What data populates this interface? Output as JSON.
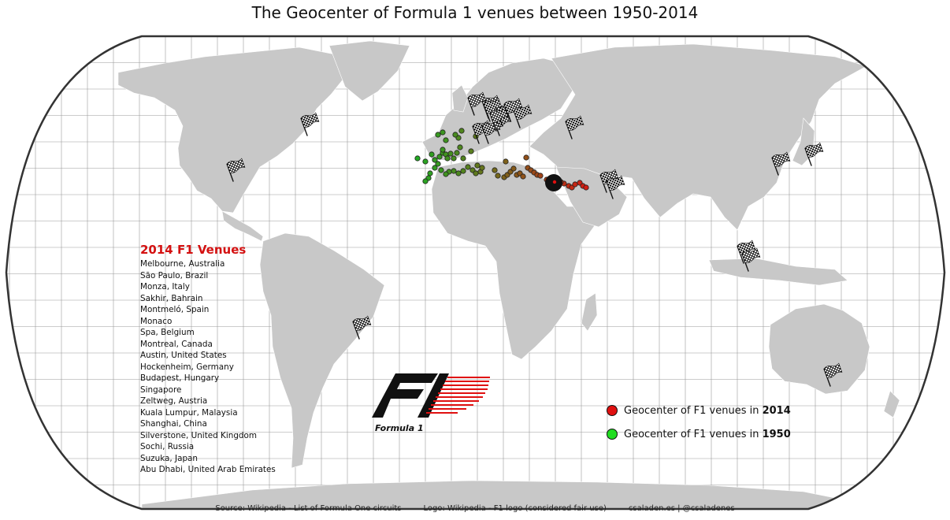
{
  "title": "The Geocenter of Formula 1 venues between 1950-2014",
  "venues_heading": "2014 F1 Venues",
  "venues": [
    "Melbourne, Australia",
    "São Paulo, Brazil",
    "Monza, Italy",
    "Sakhir, Bahrain",
    "Montmeló, Spain",
    "Monaco",
    "Spa, Belgium",
    "Montreal, Canada",
    "Austin, United States",
    "Hockenheim, Germany",
    "Budapest, Hungary",
    "Singapore",
    "Zeltweg, Austria",
    "Kuala Lumpur, Malaysia",
    "Shanghai, China",
    "Silverstone, United Kingdom",
    "Sochi, Russia",
    "Suzuka, Japan",
    "Abu Dhabi, United Arab Emirates"
  ],
  "legend": [
    {
      "prefix": "Geocenter of F1 venues in ",
      "year": "2014",
      "color": "#e01010"
    },
    {
      "prefix": "Geocenter of F1 venues in ",
      "year": "1950",
      "color": "#22dd22"
    }
  ],
  "footer": {
    "source": "Source: Wikipedia - List of Formula One circuits",
    "logo": "Logo: Wikipedia - F1 logo (considered fair use)",
    "credit": "csaladen.es | @csaladenes"
  },
  "logo_caption": "Formula 1",
  "colors": {
    "land": "#c8c8c8",
    "ocean": "#ffffff",
    "graticule": "#9a9a9a",
    "frame": "#333333",
    "marker_2014": "#e01010",
    "marker_1950": "#22dd22"
  },
  "icons": [
    "checkered-flag-icon",
    "f1-logo-icon",
    "geocenter-marker-icon"
  ]
}
